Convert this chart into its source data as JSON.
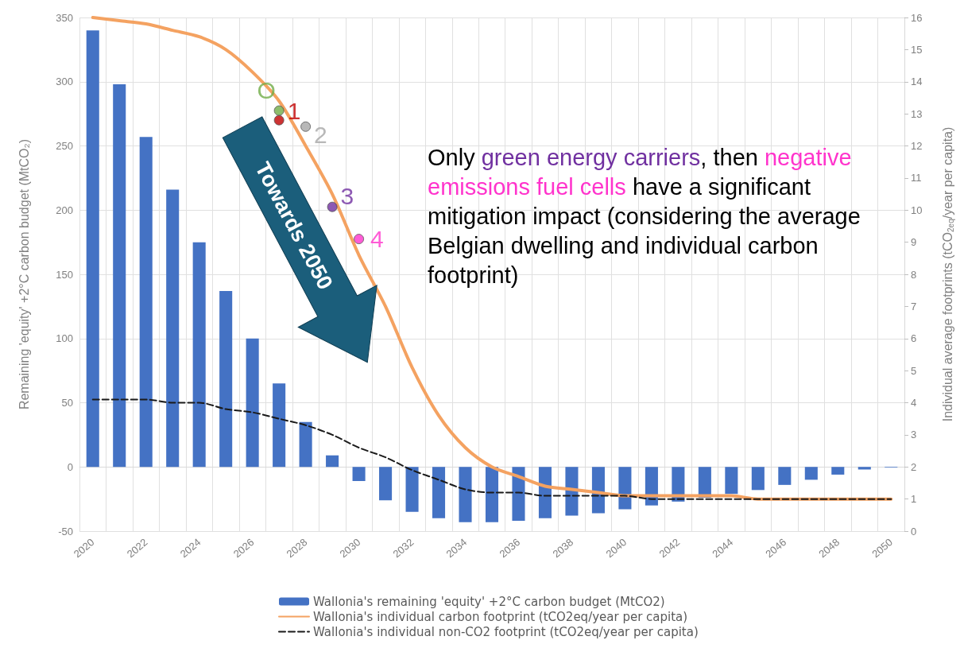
{
  "chart_data": {
    "type": "bar",
    "categories": [
      "2020",
      null,
      "2022",
      null,
      "2024",
      null,
      "2026",
      null,
      "2028",
      null,
      "2030",
      null,
      "2032",
      null,
      "2034",
      null,
      "2036",
      null,
      "2038",
      null,
      "2040",
      null,
      "2042",
      null,
      "2044",
      null,
      "2046",
      null,
      "2048",
      null,
      "2050"
    ],
    "ylabel": "Remaining 'equity' +2°C carbon budget (MtCO₂)",
    "y2label": "Individual average footprints (tCO$_{2eq}$/year per capita)",
    "ylim": [
      -50,
      350
    ],
    "yticks": [
      -50,
      0,
      50,
      100,
      150,
      200,
      250,
      300,
      350
    ],
    "y2lim": [
      0,
      16
    ],
    "y2ticks": [
      0,
      1,
      2,
      3,
      4,
      5,
      6,
      7,
      8,
      9,
      10,
      11,
      12,
      13,
      14,
      15,
      16
    ],
    "grid": true,
    "legend": "bottom",
    "series": [
      {
        "name": "Wallonia's remaining 'equity' +2°C carbon budget (MtCO2)",
        "color": "#4472c4",
        "values": [
          340,
          298,
          257,
          216,
          175,
          137,
          100,
          65,
          35,
          9,
          -11,
          -26,
          -35,
          -40,
          -43,
          -43,
          -42,
          -40,
          -38,
          -36,
          -33,
          -30,
          -27,
          -24,
          -21,
          -18,
          -14,
          -10,
          -6,
          -2,
          -0.5
        ]
      },
      {
        "name": "Wallonia's individual carbon footprint (tCO2eq/year per capita)",
        "type": "line",
        "axis": "y2",
        "color": "#f4a261",
        "line_style": "solid",
        "marker": "none",
        "values": [
          16.0,
          15.9,
          15.8,
          15.6,
          15.4,
          15.0,
          14.3,
          13.4,
          12.0,
          10.5,
          8.6,
          7.0,
          5.1,
          3.6,
          2.6,
          2.0,
          1.7,
          1.4,
          1.3,
          1.2,
          1.1,
          1.1,
          1.1,
          1.1,
          1.1,
          1.0,
          1.0,
          1.0,
          1.0,
          1.0,
          1.0
        ]
      },
      {
        "name": "Wallonia's individual non-CO2 footprint (tCO2eq/year per capita)",
        "type": "line",
        "axis": "y2",
        "color": "#1a1a1a",
        "line_style": "dashed",
        "marker": "none",
        "values": [
          4.1,
          4.1,
          4.1,
          4.0,
          4.0,
          3.8,
          3.7,
          3.5,
          3.3,
          3.0,
          2.6,
          2.3,
          1.9,
          1.6,
          1.3,
          1.2,
          1.2,
          1.1,
          1.1,
          1.1,
          1.1,
          1.0,
          1.0,
          1.0,
          1.0,
          1.0,
          1.0,
          1.0,
          1.0,
          1.0,
          1.0
        ]
      },
      {
        "name": "O",
        "type": "scatter",
        "axis": "y2",
        "color": "#70ad47",
        "marker": "circle",
        "values": [
          null,
          null,
          null,
          null,
          null,
          null,
          null,
          13.1,
          null,
          null,
          null,
          null,
          null,
          null,
          null,
          null,
          null,
          null,
          null,
          null,
          null,
          null,
          null,
          null,
          null,
          null,
          null,
          null,
          null,
          null,
          null
        ]
      },
      {
        "name": "1",
        "type": "scatter",
        "axis": "y2",
        "color": "#c00000",
        "marker": "circle",
        "values": [
          null,
          null,
          null,
          null,
          null,
          null,
          null,
          12.8,
          null,
          null,
          null,
          null,
          null,
          null,
          null,
          null,
          null,
          null,
          null,
          null,
          null,
          null,
          null,
          null,
          null,
          null,
          null,
          null,
          null,
          null,
          null
        ]
      },
      {
        "name": "2",
        "type": "scatter",
        "axis": "y2",
        "color": "#a6a6a6",
        "marker": "circle",
        "values": [
          null,
          null,
          null,
          null,
          null,
          null,
          null,
          null,
          12.6,
          null,
          null,
          null,
          null,
          null,
          null,
          null,
          null,
          null,
          null,
          null,
          null,
          null,
          null,
          null,
          null,
          null,
          null,
          null,
          null,
          null,
          null
        ]
      },
      {
        "name": "3",
        "type": "scatter",
        "axis": "y2",
        "color": "#7030a0",
        "marker": "circle",
        "values": [
          null,
          null,
          null,
          null,
          null,
          null,
          null,
          null,
          null,
          10.1,
          null,
          null,
          null,
          null,
          null,
          null,
          null,
          null,
          null,
          null,
          null,
          null,
          null,
          null,
          null,
          null,
          null,
          null,
          null,
          null,
          null
        ]
      },
      {
        "name": "4",
        "type": "scatter",
        "axis": "y2",
        "color": "#ff33cc",
        "marker": "circle",
        "values": [
          null,
          null,
          null,
          null,
          null,
          null,
          null,
          null,
          null,
          null,
          9.1,
          null,
          null,
          null,
          null,
          null,
          null,
          null,
          null,
          null,
          null,
          null,
          null,
          null,
          null,
          null,
          null,
          null,
          null,
          null,
          null
        ]
      }
    ],
    "annotations": [
      "Towards 2050",
      "Only ",
      "green energy carriers",
      ", then ",
      "negative emissions fuel cells",
      " have a significant mitigation impact (considering the average Belgian dwelling and individual carbon footprint)"
    ]
  }
}
